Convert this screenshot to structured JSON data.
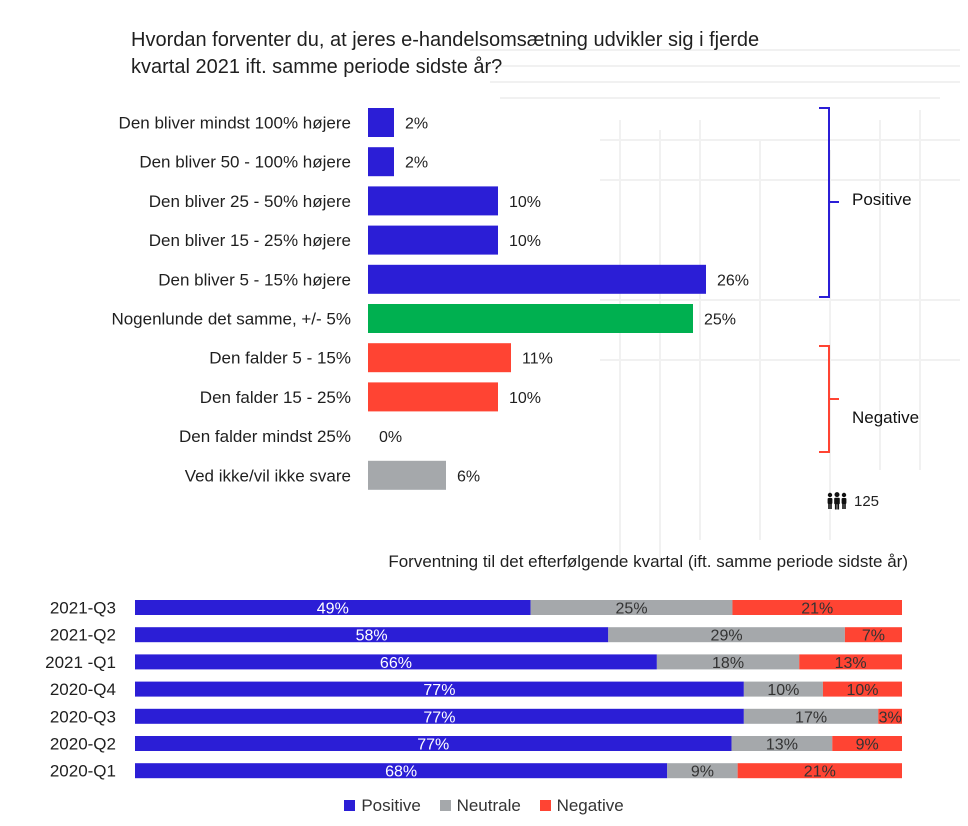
{
  "title": {
    "line1": "Hvordan forventer du, at jeres e-handelsomsætning udvikler sig i fjerde",
    "line2": "kvartal 2021 ift. samme periode sidste år?"
  },
  "groups": {
    "positive": "Positive",
    "negative": "Negative"
  },
  "respondents": {
    "icon": "people-icon",
    "count": "125"
  },
  "subtitle": "Forventning til det efterfølgende kvartal (ift. samme periode sidste år)",
  "legend": {
    "positive": "Positive",
    "neutral": "Neutrale",
    "negative": "Negative"
  },
  "colors": {
    "positive": "#2b1ed6",
    "neutral": "#00b050",
    "negative": "#ff4433",
    "no_answer": "#a5a8ab",
    "neutral_stack": "#a5a8ab"
  },
  "chart_data": [
    {
      "type": "bar",
      "orientation": "horizontal",
      "categories": [
        "Den bliver mindst 100% højere",
        "Den bliver 50 - 100% højere",
        "Den bliver 25 - 50% højere",
        "Den bliver 15 - 25% højere",
        "Den bliver 5 - 15% højere",
        "Nogenlunde det samme, +/- 5%",
        "Den falder 5 - 15%",
        "Den falder 15 - 25%",
        "Den falder mindst 25%",
        "Ved ikke/vil ikke svare"
      ],
      "values": [
        2,
        2,
        10,
        10,
        26,
        25,
        11,
        10,
        0,
        6
      ],
      "value_labels": [
        "2%",
        "2%",
        "10%",
        "10%",
        "26%",
        "25%",
        "11%",
        "10%",
        "0%",
        "6%"
      ],
      "bar_groups": [
        "positive",
        "positive",
        "positive",
        "positive",
        "positive",
        "neutral",
        "negative",
        "negative",
        "negative",
        "no_answer"
      ]
    },
    {
      "type": "bar",
      "orientation": "horizontal",
      "stacked": true,
      "title": "Forventning til det efterfølgende kvartal (ift. samme periode sidste år)",
      "categories": [
        "2021-Q3",
        "2021-Q2",
        "2021 -Q1",
        "2020-Q4",
        "2020-Q3",
        "2020-Q2",
        "2020-Q1"
      ],
      "series": [
        {
          "name": "Positive",
          "color": "#2b1ed6",
          "values": [
            49,
            58,
            66,
            77,
            77,
            77,
            68
          ],
          "labels": [
            "49%",
            "58%",
            "66%",
            "77%",
            "77%",
            "77%",
            "68%"
          ]
        },
        {
          "name": "Neutrale",
          "color": "#a5a8ab",
          "values": [
            25,
            29,
            18,
            10,
            17,
            13,
            9
          ],
          "labels": [
            "25%",
            "29%",
            "18%",
            "10%",
            "17%",
            "13%",
            "9%"
          ]
        },
        {
          "name": "Negative",
          "color": "#ff4433",
          "values": [
            21,
            7,
            13,
            10,
            3,
            9,
            21
          ],
          "labels": [
            "21%",
            "7%",
            "13%",
            "10%",
            "3%",
            "9%",
            "21%"
          ]
        }
      ],
      "legend_position": "bottom"
    }
  ]
}
